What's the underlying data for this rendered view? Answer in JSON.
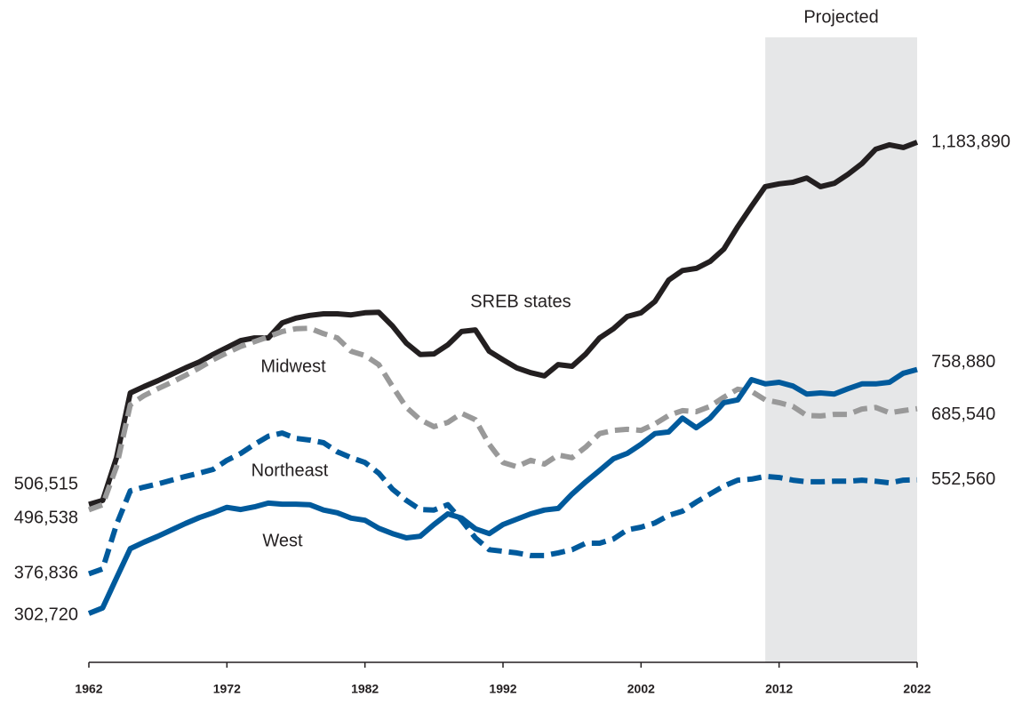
{
  "chart_data": {
    "type": "line",
    "x": [
      1962,
      1963,
      1964,
      1965,
      1966,
      1967,
      1968,
      1969,
      1970,
      1971,
      1972,
      1973,
      1974,
      1975,
      1976,
      1977,
      1978,
      1979,
      1980,
      1981,
      1982,
      1983,
      1984,
      1985,
      1986,
      1987,
      1988,
      1989,
      1990,
      1991,
      1992,
      1993,
      1994,
      1995,
      1996,
      1997,
      1998,
      1999,
      2000,
      2001,
      2002,
      2003,
      2004,
      2005,
      2006,
      2007,
      2008,
      2009,
      2010,
      2011,
      2012,
      2013,
      2014,
      2015,
      2016,
      2017,
      2018,
      2019,
      2020,
      2021,
      2022
    ],
    "xlim": [
      1962,
      2022
    ],
    "xticks": [
      1962,
      1972,
      1982,
      1992,
      2002,
      2012,
      2022
    ],
    "shaded_region": {
      "from": 2011,
      "label": "Projected"
    },
    "series": [
      {
        "name": "SREB states",
        "color": "#231f20",
        "dash": "solid",
        "values": [
          506515,
          514000,
          594000,
          715000,
          727000,
          738000,
          750000,
          762000,
          773000,
          787000,
          800000,
          813000,
          818000,
          818000,
          846000,
          855000,
          860000,
          863000,
          863000,
          861000,
          865000,
          866000,
          840000,
          808000,
          787000,
          788000,
          805000,
          830000,
          833000,
          793000,
          777000,
          762000,
          753000,
          747000,
          768000,
          765000,
          788000,
          818000,
          835000,
          858000,
          865000,
          886000,
          926000,
          944000,
          948000,
          961000,
          984000,
          1026000,
          1064000,
          1101000,
          1106000,
          1109000,
          1117000,
          1101000,
          1107000,
          1124000,
          1144000,
          1171000,
          1179000,
          1174000,
          1183890
        ],
        "value_labels": [
          "506,515",
          null,
          null,
          null,
          null,
          null,
          null,
          null,
          null,
          null,
          null,
          null,
          null,
          null,
          null,
          null,
          null,
          null,
          null,
          null,
          null,
          null,
          null,
          null,
          null,
          null,
          null,
          null,
          null,
          null,
          null,
          null,
          null,
          null,
          null,
          null,
          null,
          null,
          null,
          null,
          null,
          null,
          null,
          null,
          null,
          null,
          null,
          null,
          null,
          null,
          null,
          null,
          null,
          null,
          null,
          null,
          null,
          null,
          null,
          null,
          "1,183,890"
        ]
      },
      {
        "name": "Midwest",
        "color": "#999999",
        "dash": "dashed",
        "values": [
          496538,
          506000,
          577000,
          693000,
          710000,
          723000,
          735000,
          748000,
          762000,
          777000,
          790000,
          802000,
          811000,
          820000,
          830000,
          835000,
          836000,
          826000,
          818000,
          793000,
          785000,
          768000,
          727000,
          688000,
          665000,
          652000,
          660000,
          677000,
          665000,
          619000,
          585000,
          577000,
          589000,
          582000,
          599000,
          594000,
          614000,
          639000,
          645000,
          647000,
          645000,
          657000,
          673000,
          682000,
          680000,
          690000,
          707000,
          722000,
          718000,
          702000,
          697000,
          690000,
          673000,
          672000,
          675000,
          675000,
          685000,
          688000,
          678000,
          682000,
          685540
        ],
        "value_labels": [
          "496,538",
          null,
          null,
          null,
          null,
          null,
          null,
          null,
          null,
          null,
          null,
          null,
          null,
          null,
          null,
          null,
          null,
          null,
          null,
          null,
          null,
          null,
          null,
          null,
          null,
          null,
          null,
          null,
          null,
          null,
          null,
          null,
          null,
          null,
          null,
          null,
          null,
          null,
          null,
          null,
          null,
          null,
          null,
          null,
          null,
          null,
          null,
          null,
          null,
          null,
          null,
          null,
          null,
          null,
          null,
          null,
          null,
          null,
          null,
          null,
          "685,540"
        ]
      },
      {
        "name": "Northeast",
        "color": "#005a9c",
        "dash": "dashed",
        "values": [
          376836,
          386000,
          469000,
          532000,
          539000,
          545000,
          552000,
          559000,
          565000,
          572000,
          589000,
          602000,
          619000,
          634000,
          640000,
          630000,
          627000,
          622000,
          605000,
          594000,
          585000,
          565000,
          535000,
          514000,
          497000,
          496000,
          506000,
          477000,
          444000,
          422000,
          419000,
          416000,
          411000,
          411000,
          416000,
          422000,
          434000,
          434000,
          442000,
          459000,
          464000,
          472000,
          486000,
          494000,
          511000,
          526000,
          541000,
          552000,
          554000,
          559000,
          557000,
          552000,
          549000,
          549000,
          550000,
          550000,
          552000,
          550000,
          547000,
          552000,
          552560
        ],
        "value_labels": [
          "376,836",
          null,
          null,
          null,
          null,
          null,
          null,
          null,
          null,
          null,
          null,
          null,
          null,
          null,
          null,
          null,
          null,
          null,
          null,
          null,
          null,
          null,
          null,
          null,
          null,
          null,
          null,
          null,
          null,
          null,
          null,
          null,
          null,
          null,
          null,
          null,
          null,
          null,
          null,
          null,
          null,
          null,
          null,
          null,
          null,
          null,
          null,
          null,
          null,
          null,
          null,
          null,
          null,
          null,
          null,
          null,
          null,
          null,
          null,
          null,
          "552,560"
        ]
      },
      {
        "name": "West",
        "color": "#005a9c",
        "dash": "solid",
        "values": [
          302720,
          313000,
          369000,
          424000,
          436000,
          447000,
          459000,
          471000,
          482000,
          491000,
          501000,
          497000,
          502000,
          509000,
          507000,
          507000,
          506000,
          496000,
          491000,
          481000,
          477000,
          462000,
          452000,
          444000,
          447000,
          469000,
          489000,
          481000,
          461000,
          452000,
          469000,
          479000,
          489000,
          496000,
          499000,
          526000,
          549000,
          570000,
          592000,
          602000,
          619000,
          639000,
          642000,
          668000,
          650000,
          668000,
          697000,
          702000,
          740000,
          732000,
          735000,
          728000,
          713000,
          715000,
          713000,
          723000,
          732000,
          732000,
          735000,
          752000,
          758880
        ],
        "value_labels": [
          "302,720",
          null,
          null,
          null,
          null,
          null,
          null,
          null,
          null,
          null,
          null,
          null,
          null,
          null,
          null,
          null,
          null,
          null,
          null,
          null,
          null,
          null,
          null,
          null,
          null,
          null,
          null,
          null,
          null,
          null,
          null,
          null,
          null,
          null,
          null,
          null,
          null,
          null,
          null,
          null,
          null,
          null,
          null,
          null,
          null,
          null,
          null,
          null,
          null,
          null,
          null,
          null,
          null,
          null,
          null,
          null,
          null,
          null,
          null,
          null,
          "758,880"
        ]
      }
    ]
  }
}
